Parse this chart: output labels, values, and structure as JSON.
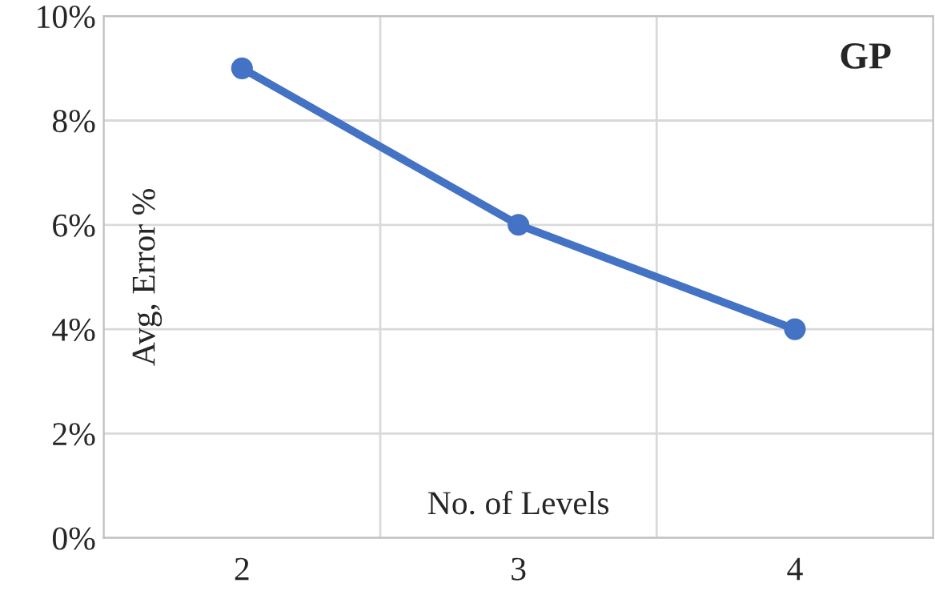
{
  "chart_data": {
    "type": "line",
    "xlabel": "No. of Levels",
    "ylabel": "Avg, Error %",
    "annotations": [
      "GP"
    ],
    "categories": [
      "2",
      "3",
      "4"
    ],
    "series": [
      {
        "color": "#4472c4",
        "values": [
          9,
          6,
          4
        ]
      }
    ],
    "ylim": [
      0,
      10
    ],
    "yticks": [
      {
        "value": 0,
        "label": "0%"
      },
      {
        "value": 2,
        "label": "2%"
      },
      {
        "value": 4,
        "label": "4%"
      },
      {
        "value": 6,
        "label": "6%"
      },
      {
        "value": 8,
        "label": "8%"
      },
      {
        "value": 10,
        "label": "10%"
      }
    ],
    "grid": true,
    "marker": "circle",
    "line_style": "solid"
  }
}
